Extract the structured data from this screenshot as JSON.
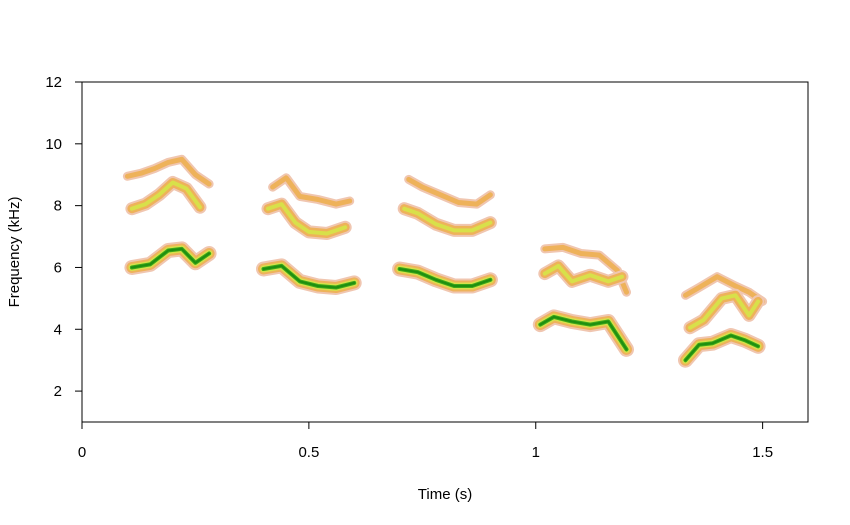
{
  "chart_data": {
    "type": "spectrogram",
    "title": "",
    "xlabel": "Time (s)",
    "ylabel": "Frequency (kHz)",
    "xlim": [
      0,
      1.6
    ],
    "ylim": [
      1,
      12
    ],
    "x_ticks": [
      0,
      0.5,
      1,
      1.5
    ],
    "x_tick_labels": [
      "0",
      "0.5",
      "1",
      "1.5"
    ],
    "y_ticks": [
      2,
      4,
      6,
      8,
      10,
      12
    ],
    "y_tick_labels": [
      "2",
      "4",
      "6",
      "8",
      "10",
      "12"
    ],
    "grid": false,
    "colors": {
      "outer": "#f0c6b0",
      "low": "#eeb25a",
      "mid": "#d8e04a",
      "high": "#3ca81a",
      "core": "#1f8f10"
    },
    "series": [
      {
        "level": "outer",
        "x": [
          0.1,
          0.13,
          0.16,
          0.19,
          0.22,
          0.25,
          0.28
        ],
        "y": [
          8.95,
          9.05,
          9.2,
          9.4,
          9.5,
          9.0,
          8.7
        ]
      },
      {
        "level": "mid",
        "x": [
          0.11,
          0.14,
          0.17,
          0.2,
          0.23,
          0.26
        ],
        "y": [
          7.9,
          8.05,
          8.35,
          8.75,
          8.55,
          7.95
        ]
      },
      {
        "level": "high",
        "x": [
          0.11,
          0.15,
          0.19,
          0.22,
          0.25,
          0.28
        ],
        "y": [
          6.0,
          6.1,
          6.55,
          6.6,
          6.15,
          6.45
        ]
      },
      {
        "level": "outer",
        "x": [
          0.42,
          0.45,
          0.48,
          0.52,
          0.56,
          0.59
        ],
        "y": [
          8.6,
          8.9,
          8.3,
          8.2,
          8.05,
          8.15
        ]
      },
      {
        "level": "mid",
        "x": [
          0.41,
          0.44,
          0.47,
          0.5,
          0.54,
          0.58
        ],
        "y": [
          7.9,
          8.05,
          7.45,
          7.15,
          7.1,
          7.3
        ]
      },
      {
        "level": "high",
        "x": [
          0.4,
          0.44,
          0.48,
          0.52,
          0.56,
          0.6
        ],
        "y": [
          5.95,
          6.05,
          5.55,
          5.4,
          5.35,
          5.5
        ]
      },
      {
        "level": "outer",
        "x": [
          0.72,
          0.75,
          0.79,
          0.83,
          0.87,
          0.9
        ],
        "y": [
          8.85,
          8.6,
          8.35,
          8.1,
          8.05,
          8.35
        ]
      },
      {
        "level": "mid",
        "x": [
          0.71,
          0.74,
          0.78,
          0.82,
          0.86,
          0.9
        ],
        "y": [
          7.9,
          7.75,
          7.4,
          7.2,
          7.2,
          7.45
        ]
      },
      {
        "level": "high",
        "x": [
          0.7,
          0.74,
          0.78,
          0.82,
          0.86,
          0.9
        ],
        "y": [
          5.95,
          5.85,
          5.6,
          5.4,
          5.4,
          5.6
        ]
      },
      {
        "level": "outer",
        "x": [
          1.02,
          1.06,
          1.1,
          1.14,
          1.18,
          1.2
        ],
        "y": [
          6.6,
          6.65,
          6.45,
          6.4,
          5.9,
          5.2
        ]
      },
      {
        "level": "mid",
        "x": [
          1.02,
          1.05,
          1.08,
          1.12,
          1.16,
          1.19
        ],
        "y": [
          5.8,
          6.05,
          5.55,
          5.75,
          5.55,
          5.7
        ]
      },
      {
        "level": "high",
        "x": [
          1.01,
          1.04,
          1.08,
          1.12,
          1.16,
          1.2
        ],
        "y": [
          4.15,
          4.4,
          4.25,
          4.15,
          4.25,
          3.35
        ]
      },
      {
        "level": "outer",
        "x": [
          1.33,
          1.36,
          1.4,
          1.44,
          1.47,
          1.5
        ],
        "y": [
          5.1,
          5.35,
          5.7,
          5.4,
          5.2,
          4.9
        ]
      },
      {
        "level": "mid",
        "x": [
          1.34,
          1.37,
          1.41,
          1.44,
          1.47,
          1.49
        ],
        "y": [
          4.05,
          4.3,
          5.0,
          5.1,
          4.45,
          4.9
        ]
      },
      {
        "level": "high",
        "x": [
          1.33,
          1.36,
          1.39,
          1.43,
          1.46,
          1.49
        ],
        "y": [
          3.0,
          3.5,
          3.55,
          3.8,
          3.65,
          3.45
        ]
      }
    ]
  }
}
